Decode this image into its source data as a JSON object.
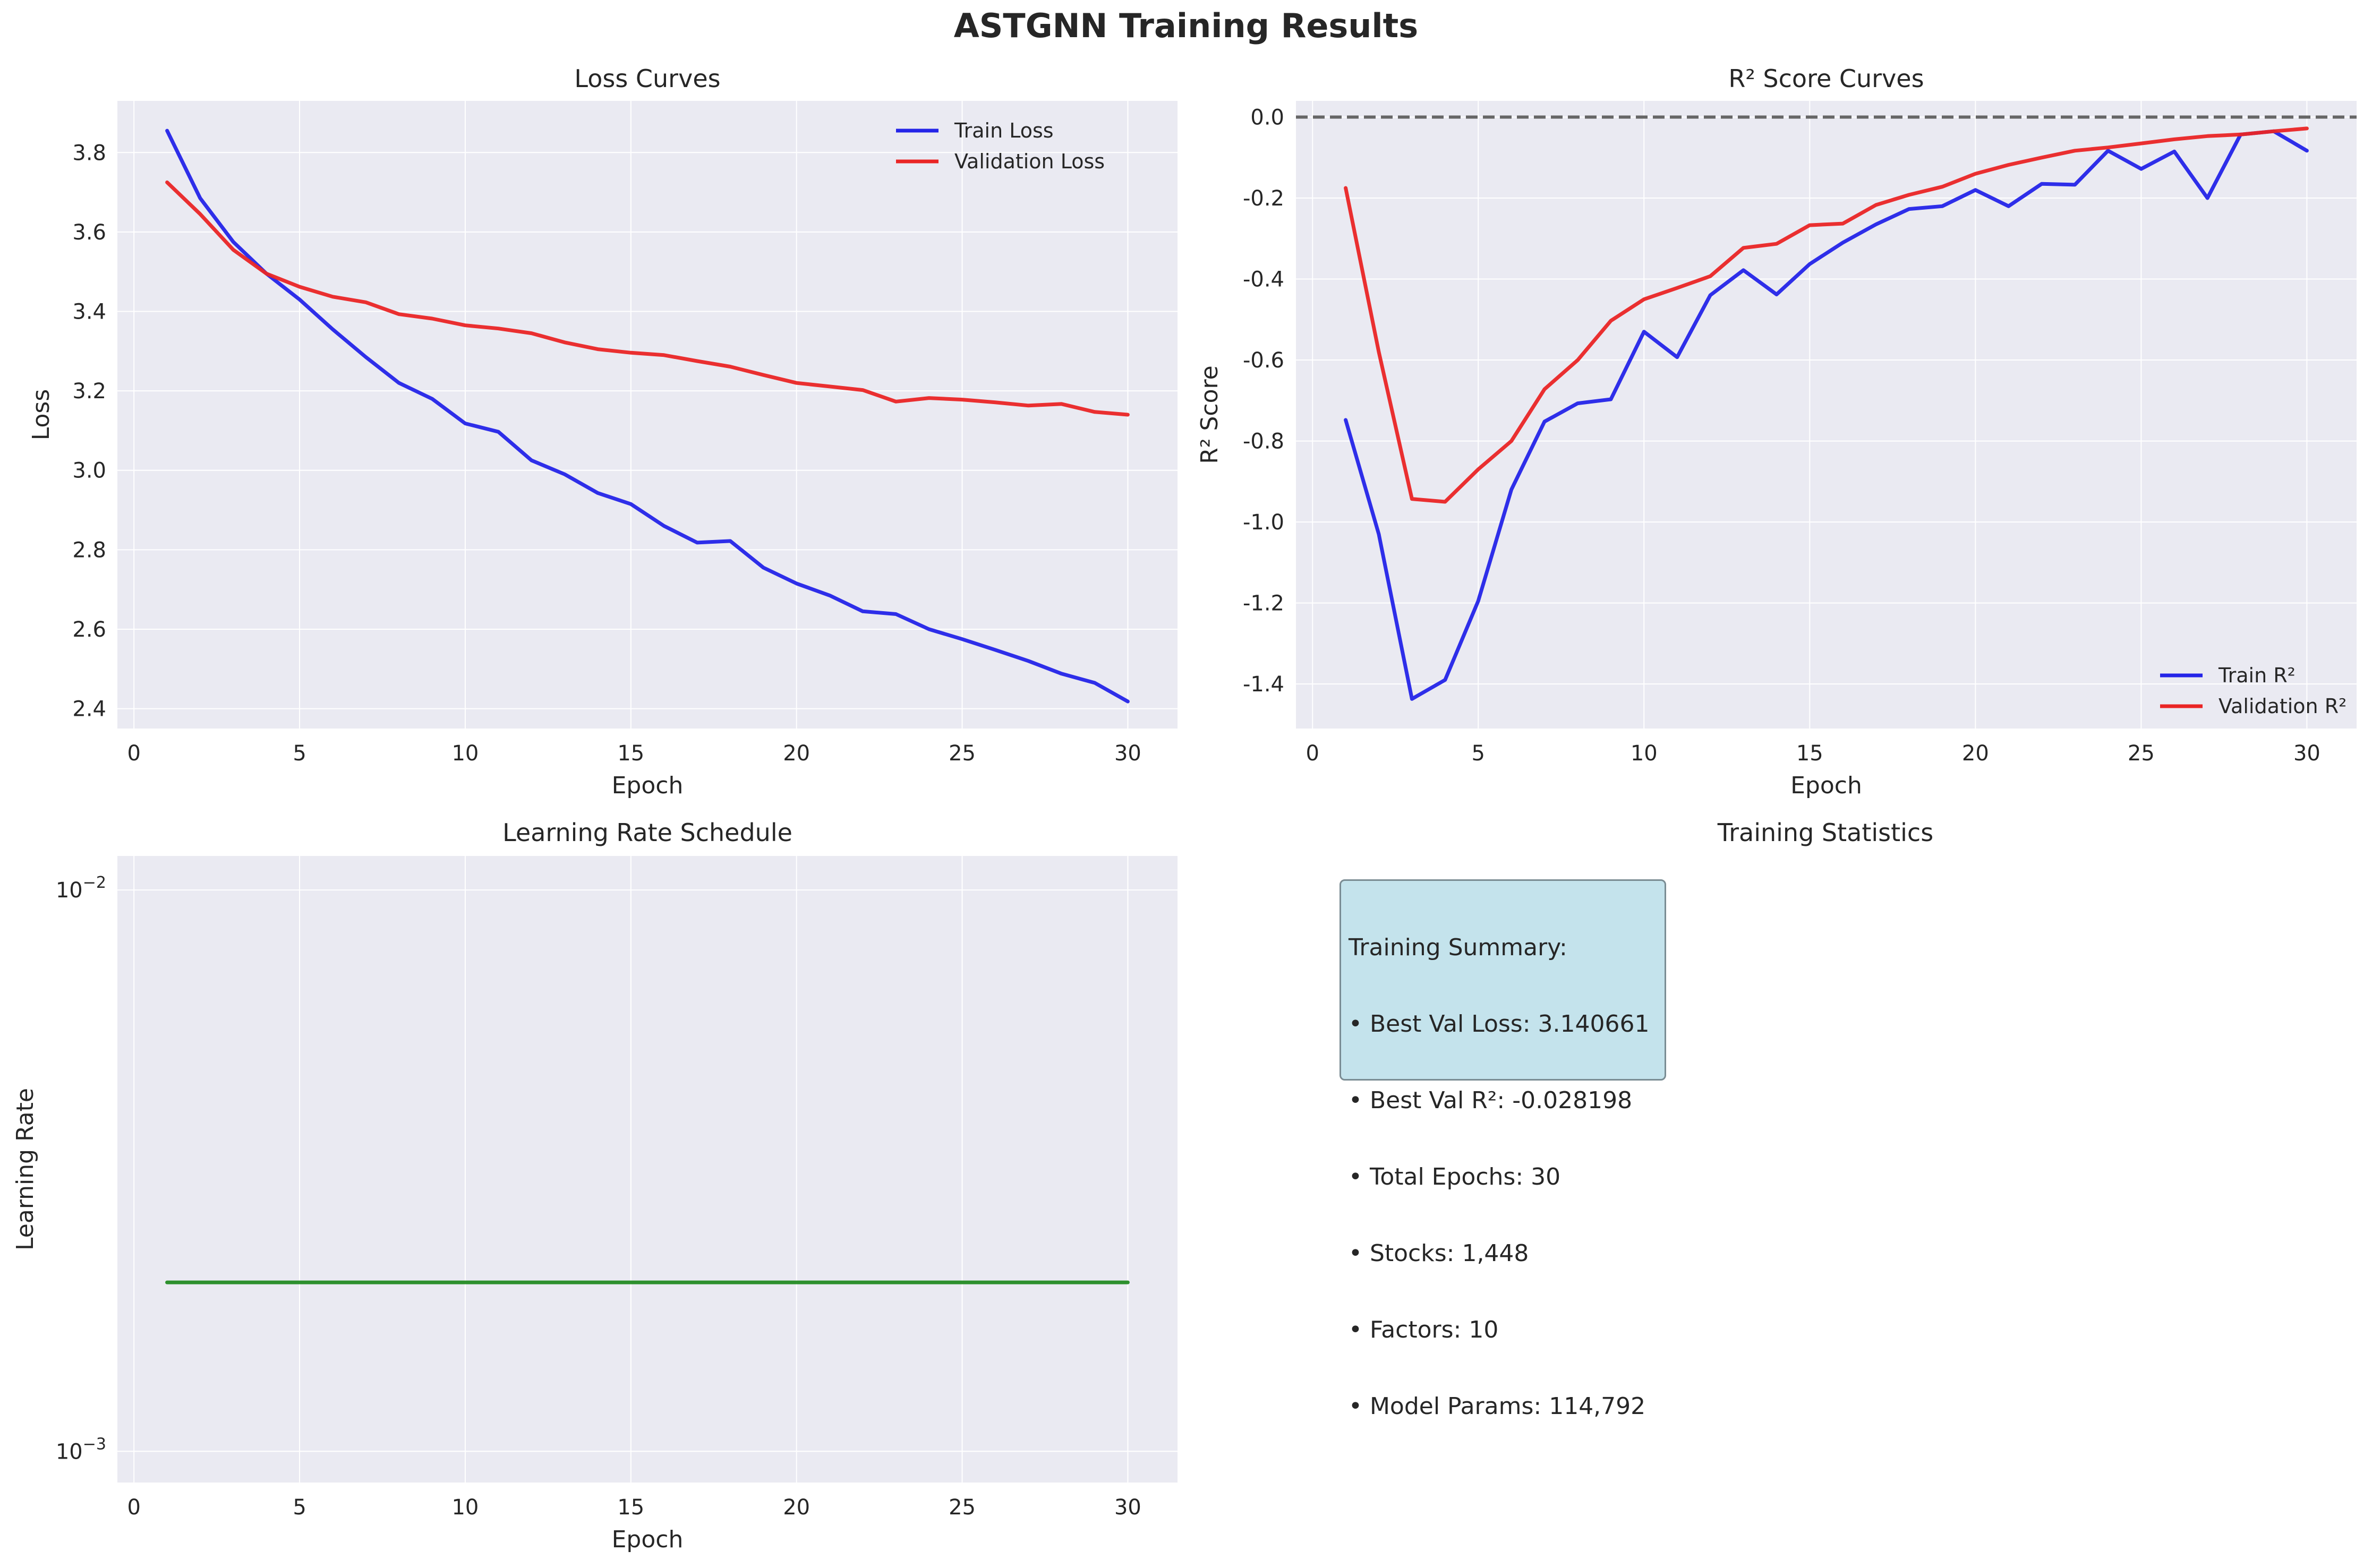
{
  "title": "ASTGNN Training Results",
  "colors": {
    "train": "#2424e8",
    "val": "#ea2525",
    "lr": "#238b23",
    "zero_line": "#666666",
    "panel_bg": "#eaeaf2"
  },
  "chart_data": [
    {
      "type": "line",
      "title": "Loss Curves",
      "xlabel": "Epoch",
      "ylabel": "Loss",
      "xlim": [
        -0.5,
        31.5
      ],
      "ylim": [
        2.35,
        3.93
      ],
      "xticks": [
        0,
        5,
        10,
        15,
        20,
        25,
        30
      ],
      "xtick_labels": [
        "0",
        "5",
        "10",
        "15",
        "20",
        "25",
        "30"
      ],
      "yticks": [
        2.4,
        2.6,
        2.8,
        3.0,
        3.2,
        3.4,
        3.6,
        3.8
      ],
      "ytick_labels": [
        "2.4",
        "2.6",
        "2.8",
        "3.0",
        "3.2",
        "3.4",
        "3.6",
        "3.8"
      ],
      "legend_position": "top-right",
      "grid": true,
      "x": [
        1,
        2,
        3,
        4,
        5,
        6,
        7,
        8,
        9,
        10,
        11,
        12,
        13,
        14,
        15,
        16,
        17,
        18,
        19,
        20,
        21,
        22,
        23,
        24,
        25,
        26,
        27,
        28,
        29,
        30
      ],
      "series": [
        {
          "name": "Train Loss",
          "color": "#2424e8",
          "values": [
            3.855,
            3.685,
            3.575,
            3.495,
            3.43,
            3.355,
            3.285,
            3.22,
            3.18,
            3.118,
            3.097,
            3.025,
            2.99,
            2.943,
            2.915,
            2.86,
            2.818,
            2.822,
            2.755,
            2.715,
            2.685,
            2.645,
            2.638,
            2.6,
            2.575,
            2.548,
            2.52,
            2.488,
            2.465,
            2.418
          ]
        },
        {
          "name": "Validation Loss",
          "color": "#ea2525",
          "values": [
            3.725,
            3.645,
            3.555,
            3.495,
            3.462,
            3.437,
            3.423,
            3.393,
            3.382,
            3.365,
            3.357,
            3.345,
            3.322,
            3.305,
            3.296,
            3.29,
            3.275,
            3.261,
            3.24,
            3.22,
            3.211,
            3.202,
            3.173,
            3.182,
            3.178,
            3.171,
            3.163,
            3.167,
            3.147,
            3.14
          ]
        }
      ]
    },
    {
      "type": "line",
      "title": "R² Score Curves",
      "xlabel": "Epoch",
      "ylabel": "R² Score",
      "xlim": [
        -0.5,
        31.5
      ],
      "ylim": [
        -1.51,
        0.04
      ],
      "xticks": [
        0,
        5,
        10,
        15,
        20,
        25,
        30
      ],
      "xtick_labels": [
        "0",
        "5",
        "10",
        "15",
        "20",
        "25",
        "30"
      ],
      "yticks": [
        -1.4,
        -1.2,
        -1.0,
        -0.8,
        -0.6,
        -0.4,
        -0.2,
        0.0
      ],
      "ytick_labels": [
        "-1.4",
        "-1.2",
        "-1.0",
        "-0.8",
        "-0.6",
        "-0.4",
        "-0.2",
        "0.0"
      ],
      "reference_line": {
        "y": 0.0,
        "style": "dashed"
      },
      "legend_position": "bottom-right",
      "grid": true,
      "x": [
        1,
        2,
        3,
        4,
        5,
        6,
        7,
        8,
        9,
        10,
        11,
        12,
        13,
        14,
        15,
        16,
        17,
        18,
        19,
        20,
        21,
        22,
        23,
        24,
        25,
        26,
        27,
        28,
        29,
        30
      ],
      "series": [
        {
          "name": "Train R²",
          "color": "#2424e8",
          "values": [
            -0.748,
            -1.03,
            -1.437,
            -1.39,
            -1.195,
            -0.92,
            -0.752,
            -0.707,
            -0.697,
            -0.53,
            -0.593,
            -0.44,
            -0.378,
            -0.438,
            -0.363,
            -0.31,
            -0.265,
            -0.227,
            -0.22,
            -0.18,
            -0.22,
            -0.165,
            -0.167,
            -0.083,
            -0.128,
            -0.085,
            -0.2,
            -0.043,
            -0.035,
            -0.083
          ]
        },
        {
          "name": "Validation R²",
          "color": "#ea2525",
          "values": [
            -0.175,
            -0.58,
            -0.943,
            -0.95,
            -0.87,
            -0.8,
            -0.672,
            -0.6,
            -0.503,
            -0.45,
            -0.422,
            -0.393,
            -0.323,
            -0.313,
            -0.267,
            -0.263,
            -0.217,
            -0.192,
            -0.172,
            -0.14,
            -0.118,
            -0.1,
            -0.083,
            -0.075,
            -0.065,
            -0.055,
            -0.047,
            -0.043,
            -0.035,
            -0.028
          ]
        }
      ]
    },
    {
      "type": "line",
      "title": "Learning Rate Schedule",
      "xlabel": "Epoch",
      "ylabel": "Learning Rate",
      "yscale": "log",
      "xlim": [
        -0.5,
        31.5
      ],
      "ylim": [
        0.00088,
        0.0115
      ],
      "xticks": [
        0,
        5,
        10,
        15,
        20,
        25,
        30
      ],
      "xtick_labels": [
        "0",
        "5",
        "10",
        "15",
        "20",
        "25",
        "30"
      ],
      "yticks": [
        0.001,
        0.01
      ],
      "ytick_labels": [
        [
          "10",
          "−3"
        ],
        [
          "10",
          "−2"
        ]
      ],
      "grid": true,
      "x": [
        1,
        30
      ],
      "series": [
        {
          "color": "#238b23",
          "values": [
            0.002,
            0.002
          ]
        }
      ]
    }
  ],
  "stats_panel": {
    "title": "Training Statistics",
    "lines": [
      "Training Summary:",
      "• Best Val Loss: 3.140661",
      "• Best Val R²: -0.028198",
      "• Total Epochs: 30",
      "• Stocks: 1,448",
      "• Factors: 10",
      "• Model Params: 114,792"
    ]
  }
}
